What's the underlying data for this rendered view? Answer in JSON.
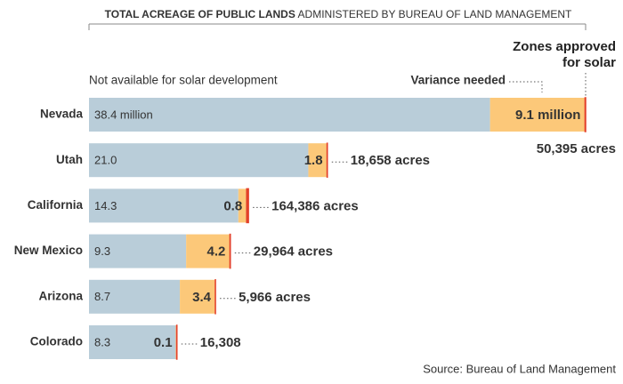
{
  "chart_data": {
    "type": "stacked-bar",
    "orientation": "horizontal",
    "title_bold": "TOTAL ACREAGE OF PUBLIC LANDS",
    "title_rest": "ADMINISTERED BY BUREAU OF LAND MANAGEMENT",
    "source": "Source:  Bureau of Land Management",
    "categories": [
      "Nevada",
      "Utah",
      "California",
      "New Mexico",
      "Arizona",
      "Colorado"
    ],
    "series": [
      {
        "name": "Not available for solar development",
        "color": "#b9cdd9",
        "values": [
          38.4,
          21.0,
          14.3,
          9.3,
          8.7,
          8.3
        ],
        "value_labels": [
          "38.4 million",
          "21.0",
          "14.3",
          "9.3",
          "8.7",
          "8.3"
        ]
      },
      {
        "name": "Variance needed",
        "color": "#fcc879",
        "values": [
          9.1,
          1.8,
          0.8,
          4.2,
          3.4,
          0.1
        ],
        "value_labels": [
          "9.1 million",
          "1.8",
          "0.8",
          "4.2",
          "3.4",
          "0.1"
        ]
      },
      {
        "name": "Zones approved for solar",
        "color": "#e3412b",
        "values": [
          0.050395,
          0.018658,
          0.164386,
          0.029964,
          0.005966,
          0.016308
        ],
        "value_labels": [
          "50,395 acres",
          "18,658 acres",
          "164,386 acres",
          "29,964 acres",
          "5,966 acres",
          "16,308"
        ]
      }
    ]
  }
}
